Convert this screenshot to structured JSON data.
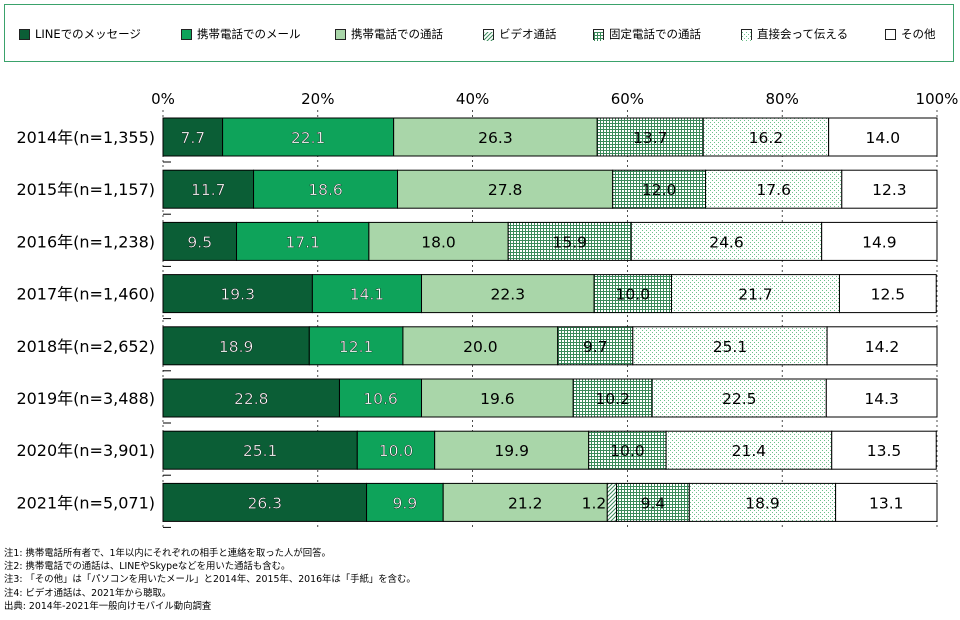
{
  "chart_data": {
    "type": "bar",
    "orientation": "horizontal",
    "stacked": "percent",
    "title": "",
    "xlim": [
      0,
      100
    ],
    "x_ticks": [
      "0%",
      "20%",
      "40%",
      "60%",
      "80%",
      "100%"
    ],
    "x_tick_values": [
      0,
      20,
      40,
      60,
      80,
      100
    ],
    "legend_position": "top",
    "categories": [
      "2014年(n=1,355)",
      "2015年(n=1,157)",
      "2016年(n=1,238)",
      "2017年(n=1,460)",
      "2018年(n=2,652)",
      "2019年(n=3,488)",
      "2020年(n=3,901)",
      "2021年(n=5,071)"
    ],
    "series": [
      {
        "name": "LINEでのメッセージ",
        "color": "#0b5e36",
        "pattern": "solid",
        "values": [
          7.7,
          11.7,
          9.5,
          19.3,
          18.9,
          22.8,
          25.1,
          26.3
        ]
      },
      {
        "name": "携帯電話でのメール",
        "color": "#0ea35a",
        "pattern": "solid",
        "values": [
          22.1,
          18.6,
          17.1,
          14.1,
          12.1,
          10.6,
          10.0,
          9.9
        ]
      },
      {
        "name": "携帯電話での通話",
        "color": "#a9d6a9",
        "pattern": "solid",
        "values": [
          26.3,
          27.8,
          18.0,
          22.3,
          20.0,
          19.6,
          19.9,
          21.2
        ]
      },
      {
        "name": "ビデオ通話",
        "color": "#3a8a5a",
        "pattern": "diagonal",
        "values": [
          null,
          null,
          null,
          null,
          null,
          null,
          null,
          1.2
        ]
      },
      {
        "name": "固定電話での通話",
        "color": "#3a8a5a",
        "pattern": "grid",
        "values": [
          13.7,
          12.0,
          15.9,
          10.0,
          9.7,
          10.2,
          10.0,
          9.4
        ]
      },
      {
        "name": "直接会って伝える",
        "color": "#6cc08b",
        "pattern": "dots",
        "values": [
          16.2,
          17.6,
          24.6,
          21.7,
          25.1,
          22.5,
          21.4,
          18.9
        ]
      },
      {
        "name": "その他",
        "color": "#ffffff",
        "pattern": "solid",
        "values": [
          14.0,
          12.3,
          14.9,
          12.5,
          14.2,
          14.3,
          13.5,
          13.1
        ]
      }
    ],
    "data_labels": [
      [
        "7.7",
        "22.1",
        "26.3",
        "",
        "13.7",
        "16.2",
        "14.0"
      ],
      [
        "11.7",
        "18.6",
        "27.8",
        "",
        "12.0",
        "17.6",
        "12.3"
      ],
      [
        "9.5",
        "17.1",
        "18.0",
        "",
        "15.9",
        "24.6",
        "14.9"
      ],
      [
        "19.3",
        "14.1",
        "22.3",
        "",
        "10.0",
        "21.7",
        "12.5"
      ],
      [
        "18.9",
        "12.1",
        "20.0",
        "",
        "9.7",
        "25.1",
        "14.2"
      ],
      [
        "22.8",
        "10.6",
        "19.6",
        "",
        "10.2",
        "22.5",
        "14.3"
      ],
      [
        "25.1",
        "10.0",
        "19.9",
        "",
        "10.0",
        "21.4",
        "13.5"
      ],
      [
        "26.3",
        "9.9",
        "21.2",
        "1.2",
        "9.4",
        "18.9",
        "13.1"
      ]
    ]
  },
  "notes": [
    "注1: 携帯電話所有者で、1年以内にそれぞれの相手と連絡を取った人が回答。",
    "注2: 携帯電話での通話は、LINEやSkypeなどを用いた通話も含む。",
    "注3: 「その他」は「パソコンを用いたメール」と2014年、2015年、2016年は「手紙」を含む。",
    "注4: ビデオ通話は、2021年から聴取。",
    "出典: 2014年-2021年一般向けモバイル動向調査"
  ]
}
